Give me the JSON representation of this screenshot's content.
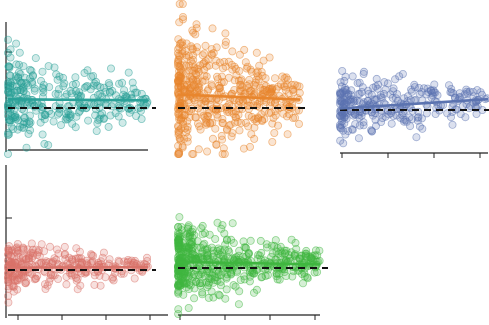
{
  "chart_data": [
    {
      "type": "scatter",
      "panel": "top-left",
      "color": "#2aa198",
      "trend": [
        [
          0.0,
          0.25
        ],
        [
          3.5,
          0.22
        ]
      ],
      "noise": {
        "count": 320,
        "spread": 0.55
      },
      "xlim": [
        0,
        3.5
      ],
      "ylim": [
        -1.2,
        2.6
      ],
      "baseline_y": 0
    },
    {
      "type": "scatter",
      "panel": "top-middle",
      "color": "#e8862e",
      "trend": [
        [
          0.0,
          0.35
        ],
        [
          3.0,
          0.22
        ]
      ],
      "noise": {
        "count": 520,
        "spread": 0.75
      },
      "xlim": [
        0,
        3.0
      ],
      "ylim": [
        -1.2,
        2.6
      ],
      "baseline_y": 0
    },
    {
      "type": "scatter",
      "panel": "top-right",
      "color": "#5b73b0",
      "trend": [
        [
          0.0,
          0.05
        ],
        [
          3.5,
          0.35
        ]
      ],
      "noise": {
        "count": 300,
        "spread": 0.5
      },
      "xlim": [
        0,
        3.5
      ],
      "ylim": [
        -1.2,
        2.6
      ],
      "baseline_y": 0
    },
    {
      "type": "scatter",
      "panel": "bottom-left",
      "color": "#d9736a",
      "trend": [
        [
          0.0,
          0.1
        ],
        [
          3.5,
          0.12
        ]
      ],
      "noise": {
        "count": 300,
        "spread": 0.45
      },
      "xlim": [
        0,
        3.5
      ],
      "ylim": [
        -1.2,
        2.6
      ],
      "baseline_y": 0
    },
    {
      "type": "scatter",
      "panel": "bottom-middle",
      "color": "#3fb63f",
      "trend": [
        [
          0.0,
          0.25
        ],
        [
          3.0,
          0.15
        ]
      ],
      "noise": {
        "count": 560,
        "spread": 0.7
      },
      "xlim": [
        0,
        3.0
      ],
      "ylim": [
        -1.2,
        2.6
      ],
      "baseline_y": 0
    }
  ]
}
